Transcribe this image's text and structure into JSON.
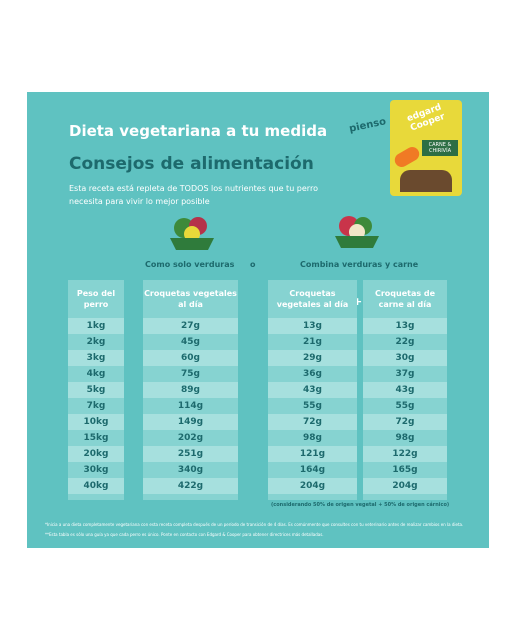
{
  "header": {
    "title": "Dieta vegetariana a tu medida",
    "subtitle": "Consejos de alimentación",
    "description": "Esta receta está repleta de TODOS los nutrientes que tu perro necesita para vivir lo mejor posible",
    "product_label": "pienso",
    "product_brand": "edgard Cooper",
    "product_name": "CARNE & CHIRIVÍA"
  },
  "sections": {
    "vegetables": "Como solo verduras",
    "or": "o",
    "combined": "Combina verduras y carne",
    "plus": "+"
  },
  "table": {
    "headers": [
      "Peso del perro",
      "Croquetas vegetales al día",
      "Croquetas vegetales al día",
      "Croquetas de carne al día"
    ],
    "rows": [
      [
        "1kg",
        "27g",
        "13g",
        "13g"
      ],
      [
        "2kg",
        "45g",
        "21g",
        "22g"
      ],
      [
        "3kg",
        "60g",
        "29g",
        "30g"
      ],
      [
        "4kg",
        "75g",
        "36g",
        "37g"
      ],
      [
        "5kg",
        "89g",
        "43g",
        "43g"
      ],
      [
        "7kg",
        "114g",
        "55g",
        "55g"
      ],
      [
        "10kg",
        "149g",
        "72g",
        "72g"
      ],
      [
        "15kg",
        "202g",
        "98g",
        "98g"
      ],
      [
        "20kg",
        "251g",
        "121g",
        "122g"
      ],
      [
        "30kg",
        "340g",
        "164g",
        "165g"
      ],
      [
        "40kg",
        "422g",
        "204g",
        "204g"
      ]
    ],
    "note": "(considerando 50% de origen vegetal + 50% de origen cárnico)"
  },
  "footnotes": [
    "*Inicia a una dieta completamente vegetariana con esta receta completa después de un período de transición de 4 días. Es comúnmente que consultes con tu veterinario antes de realizar cambios en la dieta.",
    "**Esta tabla es sólo una guía ya que cada perro es único. Ponte en contacto con Edgard & Cooper para obtener directrices más detalladas."
  ]
}
